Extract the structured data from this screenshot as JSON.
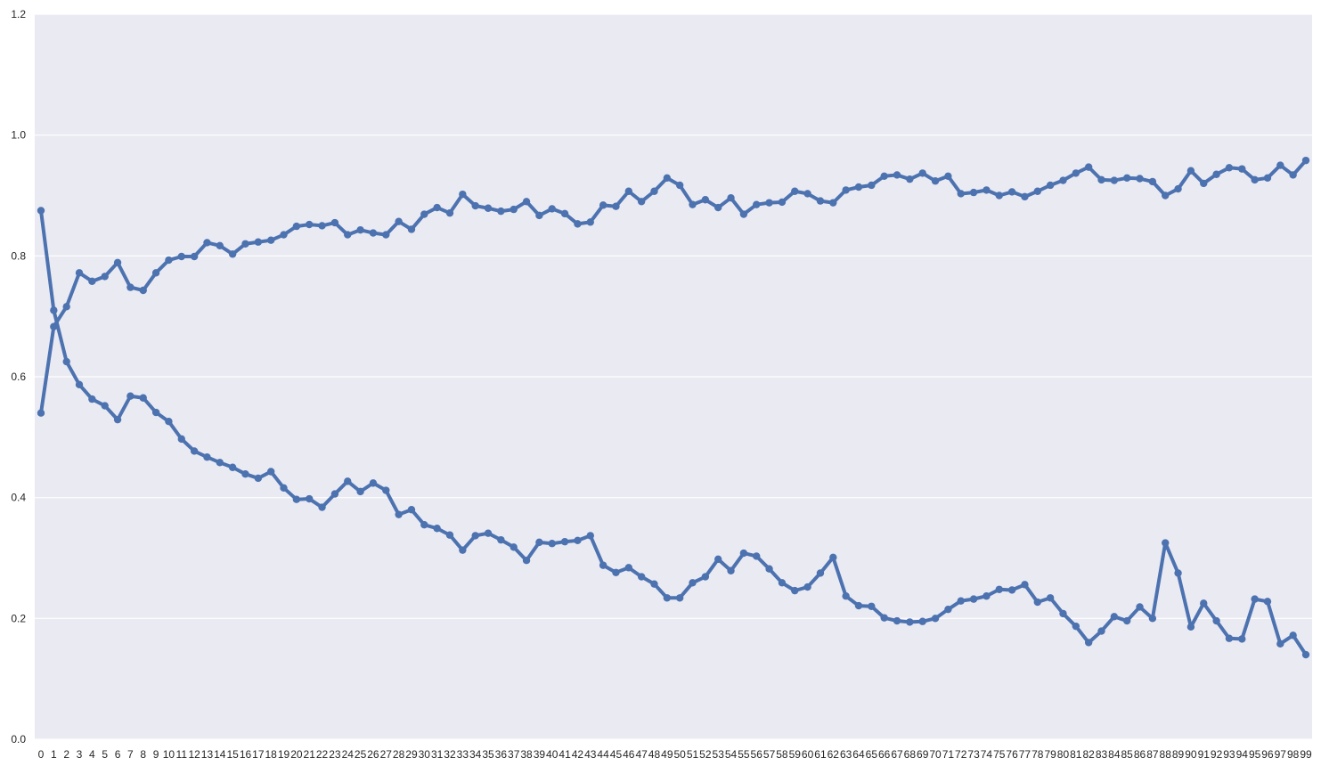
{
  "chart_data": {
    "type": "line",
    "title": "",
    "xlabel": "",
    "ylabel": "",
    "x": [
      0,
      1,
      2,
      3,
      4,
      5,
      6,
      7,
      8,
      9,
      10,
      11,
      12,
      13,
      14,
      15,
      16,
      17,
      18,
      19,
      20,
      21,
      22,
      23,
      24,
      25,
      26,
      27,
      28,
      29,
      30,
      31,
      32,
      33,
      34,
      35,
      36,
      37,
      38,
      39,
      40,
      41,
      42,
      43,
      44,
      45,
      46,
      47,
      48,
      49,
      50,
      51,
      52,
      53,
      54,
      55,
      56,
      57,
      58,
      59,
      60,
      61,
      62,
      63,
      64,
      65,
      66,
      67,
      68,
      69,
      70,
      71,
      72,
      73,
      74,
      75,
      76,
      77,
      78,
      79,
      80,
      81,
      82,
      83,
      84,
      85,
      86,
      87,
      88,
      89,
      90,
      91,
      92,
      93,
      94,
      95,
      96,
      97,
      98,
      99
    ],
    "ylim": [
      0,
      1.2
    ],
    "y_ticks": [
      0.0,
      0.2,
      0.4,
      0.6,
      0.8,
      1.0,
      1.2
    ],
    "y_tick_labels": [
      "0.0",
      "0.2",
      "0.4",
      "0.6",
      "0.8",
      "1.0",
      "1.2"
    ],
    "grid": "horizontal",
    "legend": "none",
    "series": [
      {
        "color": "#4c72b0",
        "values": [
          0.54,
          0.683,
          0.716,
          0.772,
          0.758,
          0.766,
          0.789,
          0.748,
          0.743,
          0.772,
          0.793,
          0.799,
          0.799,
          0.822,
          0.817,
          0.803,
          0.82,
          0.823,
          0.826,
          0.835,
          0.849,
          0.852,
          0.85,
          0.855,
          0.835,
          0.843,
          0.838,
          0.835,
          0.857,
          0.844,
          0.869,
          0.88,
          0.871,
          0.902,
          0.883,
          0.879,
          0.874,
          0.877,
          0.89,
          0.867,
          0.878,
          0.87,
          0.853,
          0.856,
          0.884,
          0.882,
          0.907,
          0.89,
          0.907,
          0.929,
          0.917,
          0.885,
          0.893,
          0.88,
          0.896,
          0.869,
          0.885,
          0.888,
          0.889,
          0.907,
          0.903,
          0.891,
          0.888,
          0.909,
          0.914,
          0.917,
          0.932,
          0.934,
          0.927,
          0.937,
          0.924,
          0.932,
          0.903,
          0.905,
          0.909,
          0.9,
          0.906,
          0.898,
          0.907,
          0.917,
          0.925,
          0.937,
          0.947,
          0.926,
          0.925,
          0.929,
          0.928,
          0.923,
          0.9,
          0.911,
          0.941,
          0.92,
          0.935,
          0.946,
          0.944,
          0.926,
          0.929,
          0.95,
          0.934,
          0.958
        ]
      },
      {
        "color": "#4c72b0",
        "values": [
          0.875,
          0.71,
          0.625,
          0.587,
          0.563,
          0.552,
          0.529,
          0.568,
          0.565,
          0.541,
          0.526,
          0.497,
          0.477,
          0.467,
          0.458,
          0.45,
          0.439,
          0.432,
          0.443,
          0.416,
          0.397,
          0.398,
          0.384,
          0.406,
          0.427,
          0.41,
          0.424,
          0.412,
          0.372,
          0.38,
          0.355,
          0.349,
          0.338,
          0.313,
          0.337,
          0.341,
          0.33,
          0.318,
          0.296,
          0.326,
          0.324,
          0.327,
          0.329,
          0.337,
          0.288,
          0.276,
          0.284,
          0.269,
          0.257,
          0.234,
          0.234,
          0.259,
          0.269,
          0.298,
          0.279,
          0.308,
          0.303,
          0.282,
          0.259,
          0.246,
          0.252,
          0.275,
          0.301,
          0.237,
          0.221,
          0.22,
          0.201,
          0.196,
          0.194,
          0.195,
          0.2,
          0.215,
          0.229,
          0.232,
          0.237,
          0.248,
          0.247,
          0.256,
          0.227,
          0.234,
          0.208,
          0.187,
          0.16,
          0.179,
          0.203,
          0.196,
          0.219,
          0.2,
          0.325,
          0.275,
          0.186,
          0.225,
          0.196,
          0.167,
          0.166,
          0.232,
          0.228,
          0.158,
          0.172,
          0.14
        ]
      }
    ]
  }
}
